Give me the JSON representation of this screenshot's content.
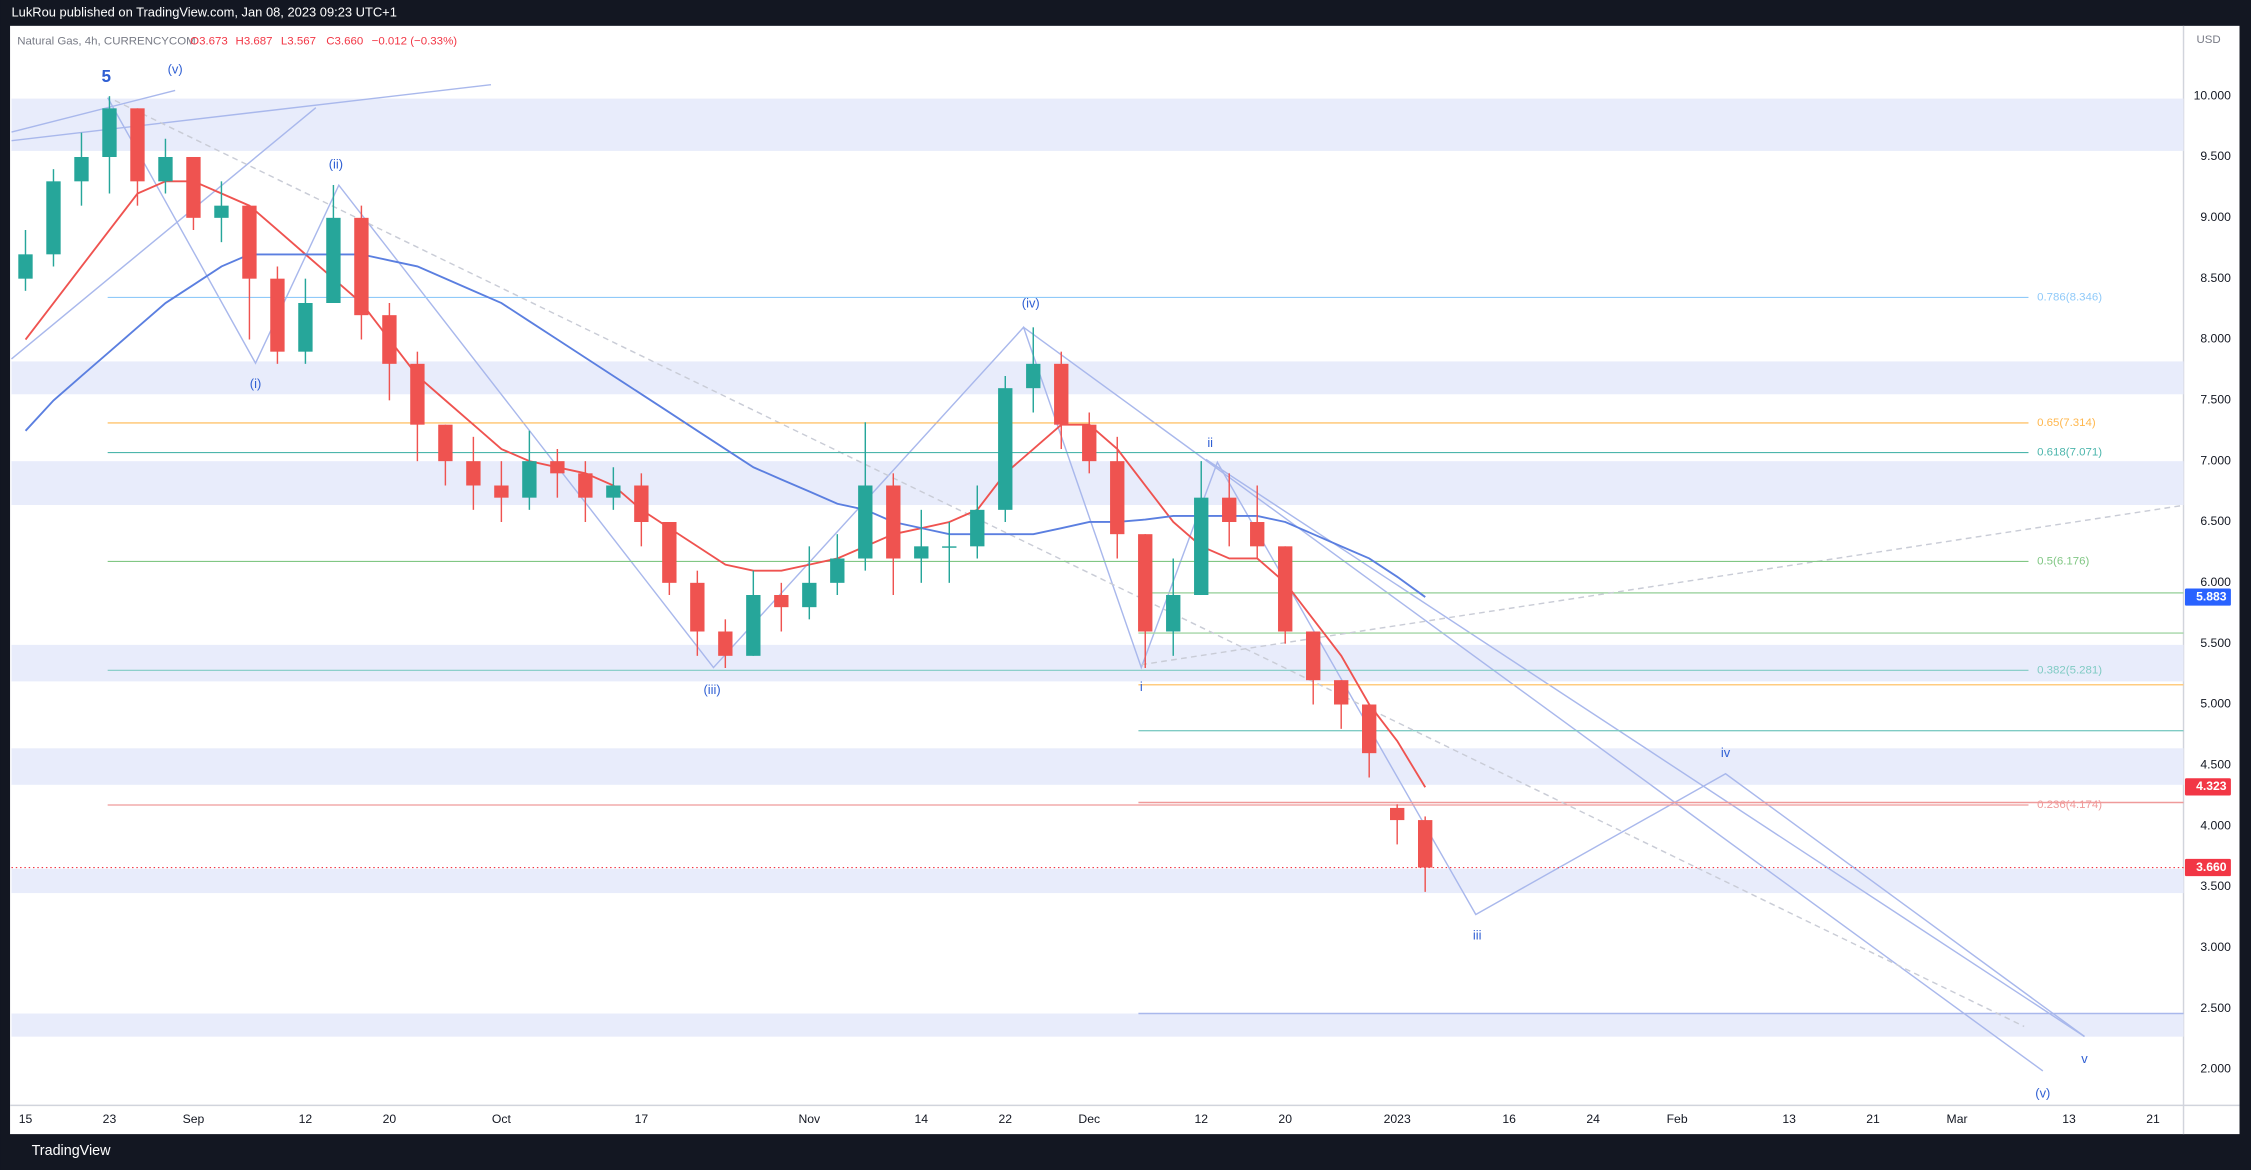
{
  "chart_data": {
    "type": "candlestick",
    "header": "LukRou published on TradingView.com, Jan 08, 2023 09:23 UTC+1",
    "symbol": "Natural Gas, 4h, CURRENCYCOM",
    "ohlc_legend": [
      "O3.673",
      "H3.687",
      "L3.567",
      "C3.660",
      "−0.012 (−0.33%)"
    ],
    "currency": "USD",
    "footer": "TradingView",
    "categories": [
      "15",
      null,
      null,
      "23",
      null,
      null,
      "Sep",
      null,
      null,
      null,
      "12",
      null,
      null,
      "20",
      null,
      null,
      null,
      "Oct",
      null,
      null,
      null,
      null,
      "17",
      null,
      null,
      null,
      null,
      null,
      "Nov",
      null,
      null,
      null,
      "14",
      null,
      null,
      "22",
      null,
      null,
      "Dec",
      null,
      null,
      null,
      "12",
      null,
      null,
      "20",
      null,
      null,
      null,
      "2023",
      null,
      null,
      null,
      "16",
      null,
      null,
      "24",
      null,
      null,
      "Feb",
      null,
      null,
      null,
      "13",
      null,
      null,
      "21",
      null,
      null,
      "Mar",
      null,
      null,
      null,
      "13",
      null,
      null,
      "21"
    ],
    "open": [
      8.5,
      8.7,
      9.3,
      9.5,
      9.9,
      9.3,
      9.5,
      9.0,
      9.1,
      8.5,
      7.9,
      8.3,
      9.0,
      8.2,
      7.8,
      7.3,
      7.0,
      6.8,
      6.7,
      7.0,
      6.9,
      6.7,
      6.8,
      6.5,
      6.0,
      5.6,
      5.4,
      5.9,
      5.8,
      6.0,
      6.2,
      6.8,
      6.2,
      6.3,
      6.3,
      6.6,
      7.6,
      7.8,
      7.3,
      7.0,
      6.4,
      5.6,
      5.9,
      6.7,
      6.5,
      6.3,
      5.6,
      5.2,
      5.0,
      4.15,
      4.05,
      null,
      null,
      null,
      null,
      null,
      null,
      null,
      null,
      null,
      null,
      null,
      null,
      null,
      null,
      null,
      null,
      null,
      null,
      null,
      null,
      null,
      null,
      null,
      null,
      null,
      null
    ],
    "high": [
      8.9,
      9.4,
      9.7,
      10.0,
      9.9,
      9.65,
      9.5,
      9.3,
      9.1,
      8.6,
      8.5,
      9.27,
      9.1,
      8.3,
      7.9,
      7.3,
      7.2,
      7.0,
      7.25,
      7.1,
      7.0,
      6.95,
      6.9,
      6.5,
      6.1,
      5.7,
      6.1,
      6.0,
      6.3,
      6.4,
      7.32,
      6.9,
      6.6,
      6.5,
      6.8,
      7.7,
      8.1,
      7.9,
      7.4,
      7.2,
      6.4,
      6.2,
      7.0,
      6.9,
      6.8,
      6.3,
      5.6,
      5.2,
      5.0,
      4.18,
      4.08,
      null,
      null,
      null,
      null,
      null,
      null,
      null,
      null,
      null,
      null,
      null,
      null,
      null,
      null,
      null,
      null,
      null,
      null,
      null,
      null,
      null,
      null,
      null,
      null,
      null,
      null
    ],
    "low": [
      8.4,
      8.6,
      9.1,
      9.2,
      9.1,
      9.2,
      8.9,
      8.8,
      8.0,
      7.8,
      7.8,
      8.3,
      8.0,
      7.5,
      7.0,
      6.8,
      6.6,
      6.5,
      6.6,
      6.7,
      6.5,
      6.6,
      6.3,
      5.9,
      5.4,
      5.3,
      5.4,
      5.6,
      5.7,
      5.9,
      6.1,
      5.9,
      6.0,
      6.0,
      6.2,
      6.5,
      7.4,
      7.1,
      6.9,
      6.2,
      5.3,
      5.4,
      5.9,
      6.3,
      6.2,
      5.5,
      5.0,
      4.8,
      4.4,
      3.85,
      3.46,
      null,
      null,
      null,
      null,
      null,
      null,
      null,
      null,
      null,
      null,
      null,
      null,
      null,
      null,
      null,
      null,
      null,
      null,
      null,
      null,
      null,
      null,
      null,
      null,
      null,
      null
    ],
    "close": [
      8.7,
      9.3,
      9.5,
      9.9,
      9.3,
      9.5,
      9.0,
      9.1,
      8.5,
      7.9,
      8.3,
      9.0,
      8.2,
      7.8,
      7.3,
      7.0,
      6.8,
      6.7,
      7.0,
      6.9,
      6.7,
      6.8,
      6.5,
      6.0,
      5.6,
      5.4,
      5.9,
      5.8,
      6.0,
      6.2,
      6.8,
      6.2,
      6.3,
      6.3,
      6.6,
      7.6,
      7.8,
      7.3,
      7.0,
      6.4,
      5.6,
      5.9,
      6.7,
      6.5,
      6.3,
      5.6,
      5.2,
      5.0,
      4.6,
      4.05,
      3.66,
      null,
      null,
      null,
      null,
      null,
      null,
      null,
      null,
      null,
      null,
      null,
      null,
      null,
      null,
      null,
      null,
      null,
      null,
      null,
      null,
      null,
      null,
      null,
      null,
      null,
      null
    ],
    "up_color": "#26a69a",
    "down_color": "#ef5350",
    "overlays": [
      {
        "color": "#ef5350",
        "values": [
          8.0,
          8.3,
          8.6,
          8.9,
          9.2,
          9.3,
          9.3,
          9.2,
          9.1,
          8.9,
          8.7,
          8.5,
          8.3,
          8.0,
          7.7,
          7.5,
          7.3,
          7.1,
          7.0,
          6.95,
          6.9,
          6.8,
          6.6,
          6.45,
          6.3,
          6.15,
          6.1,
          6.1,
          6.15,
          6.2,
          6.3,
          6.4,
          6.45,
          6.5,
          6.6,
          6.9,
          7.1,
          7.3,
          7.3,
          7.1,
          6.8,
          6.5,
          6.3,
          6.2,
          6.2,
          6.0,
          5.7,
          5.4,
          5.0,
          4.7,
          4.32,
          null,
          null,
          null,
          null,
          null,
          null,
          null,
          null,
          null,
          null,
          null,
          null,
          null,
          null,
          null,
          null,
          null,
          null,
          null,
          null,
          null,
          null,
          null,
          null,
          null,
          null
        ]
      },
      {
        "color": "#5b7fe0",
        "values": [
          7.25,
          7.5,
          7.7,
          7.9,
          8.1,
          8.3,
          8.45,
          8.6,
          8.7,
          8.7,
          8.7,
          8.7,
          8.7,
          8.65,
          8.6,
          8.5,
          8.4,
          8.3,
          8.15,
          8.0,
          7.85,
          7.7,
          7.55,
          7.4,
          7.25,
          7.1,
          6.95,
          6.85,
          6.75,
          6.65,
          6.6,
          6.5,
          6.45,
          6.4,
          6.4,
          6.4,
          6.4,
          6.45,
          6.5,
          6.5,
          6.52,
          6.55,
          6.55,
          6.55,
          6.55,
          6.5,
          6.4,
          6.3,
          6.2,
          6.05,
          5.883,
          null,
          null,
          null,
          null,
          null,
          null,
          null,
          null,
          null,
          null,
          null,
          null,
          null,
          null,
          null,
          null,
          null,
          null,
          null,
          null,
          null,
          null,
          null,
          null,
          null,
          null
        ]
      }
    ],
    "ylim": [
      1.705,
      10.578
    ],
    "yticks": [
      {
        "value": 2,
        "label": "2.000"
      },
      {
        "value": 2.5,
        "label": "2.500"
      },
      {
        "value": 3,
        "label": "3.000"
      },
      {
        "value": 3.5,
        "label": "3.500"
      },
      {
        "value": 4,
        "label": "4.000"
      },
      {
        "value": 4.5,
        "label": "4.500"
      },
      {
        "value": 5,
        "label": "5.000"
      },
      {
        "value": 5.5,
        "label": "5.500"
      },
      {
        "value": 6,
        "label": "6.000"
      },
      {
        "value": 6.5,
        "label": "6.500"
      },
      {
        "value": 7,
        "label": "7.000"
      },
      {
        "value": 7.5,
        "label": "7.500"
      },
      {
        "value": 8,
        "label": "8.000"
      },
      {
        "value": 8.5,
        "label": "8.500"
      },
      {
        "value": 9,
        "label": "9.000"
      },
      {
        "value": 9.5,
        "label": "9.500"
      },
      {
        "value": 10,
        "label": "10.000"
      }
    ],
    "grid": false,
    "zones": [
      [
        9.55,
        9.98
      ],
      [
        7.55,
        7.82
      ],
      [
        6.64,
        7.0
      ],
      [
        5.19,
        5.49
      ],
      [
        4.34,
        4.64
      ],
      [
        3.45,
        3.65
      ],
      [
        2.27,
        2.46
      ]
    ],
    "fib_levels": [
      {
        "label": "0.786(8.346)",
        "value": 8.346,
        "color": "#90caf9"
      },
      {
        "label": "0.65(7.314)",
        "value": 7.314,
        "color": "#ffb74d"
      },
      {
        "label": "0.618(7.071)",
        "value": 7.071,
        "color": "#4db6ac"
      },
      {
        "label": "0.5(6.176)",
        "value": 6.176,
        "color": "#81c784"
      },
      {
        "label": "0.382(5.281)",
        "value": 5.281,
        "color": "#80cbc4"
      },
      {
        "label": "0.236(4.174)",
        "value": 4.174,
        "color": "#ef9a9a"
      }
    ],
    "price_tags": [
      {
        "value": 5.883,
        "color": "#2962ff"
      },
      {
        "value": 4.323,
        "color": "#f23645"
      },
      {
        "value": 3.66,
        "label": "3.660",
        "color": "#f23645"
      }
    ],
    "wave_labels": [
      "5",
      "(v)",
      "(ii)",
      "(i)",
      "(iv)",
      "(iii)",
      "ii",
      "i",
      "iii",
      "iv",
      "v",
      "(v)"
    ]
  }
}
